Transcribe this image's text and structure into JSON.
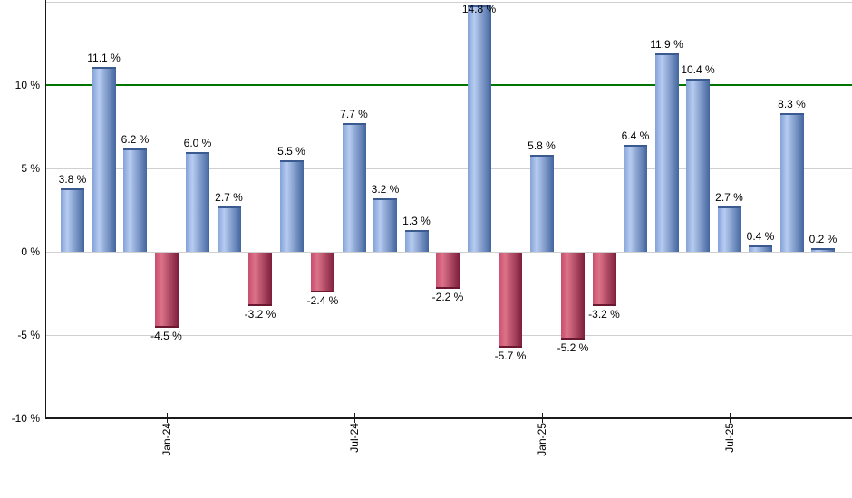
{
  "chart_data": {
    "type": "bar",
    "title": "",
    "unit": "%",
    "bars": [
      {
        "value": 3.8,
        "label": "3.8 %"
      },
      {
        "value": 11.1,
        "label": "11.1 %"
      },
      {
        "value": 6.2,
        "label": "6.2 %"
      },
      {
        "value": -4.5,
        "label": "-4.5 %"
      },
      {
        "value": 6.0,
        "label": "6.0 %"
      },
      {
        "value": 2.7,
        "label": "2.7 %"
      },
      {
        "value": -3.2,
        "label": "-3.2 %"
      },
      {
        "value": 5.5,
        "label": "5.5 %"
      },
      {
        "value": -2.4,
        "label": "-2.4 %"
      },
      {
        "value": 7.7,
        "label": "7.7 %"
      },
      {
        "value": 3.2,
        "label": "3.2 %"
      },
      {
        "value": 1.3,
        "label": "1.3 %"
      },
      {
        "value": -2.2,
        "label": "-2.2 %"
      },
      {
        "value": 14.8,
        "label": "14.8 %"
      },
      {
        "value": -5.7,
        "label": "-5.7 %"
      },
      {
        "value": 5.8,
        "label": "5.8 %"
      },
      {
        "value": -5.2,
        "label": "-5.2 %"
      },
      {
        "value": -3.2,
        "label": "-3.2 %"
      },
      {
        "value": 6.4,
        "label": "6.4 %"
      },
      {
        "value": 11.9,
        "label": "11.9 %"
      },
      {
        "value": 10.4,
        "label": "10.4 %"
      },
      {
        "value": 2.7,
        "label": "2.7 %"
      },
      {
        "value": 0.4,
        "label": "0.4 %"
      },
      {
        "value": 8.3,
        "label": "8.3 %"
      },
      {
        "value": 0.2,
        "label": "0.2 %"
      }
    ],
    "x_ticks": [
      {
        "bar_index": 3,
        "label": "Jan-24"
      },
      {
        "bar_index": 9,
        "label": "Jul-24"
      },
      {
        "bar_index": 15,
        "label": "Jan-25"
      },
      {
        "bar_index": 21,
        "label": "Jul-25"
      }
    ],
    "y_ticks": [
      {
        "value": 10,
        "label": "10 %"
      },
      {
        "value": 5,
        "label": "5 %"
      },
      {
        "value": 0,
        "label": "0 %"
      },
      {
        "value": -5,
        "label": "-5 %"
      },
      {
        "value": -10,
        "label": "-10 %"
      }
    ],
    "ylim": [
      -10,
      15.1
    ],
    "gridline_values": [
      15,
      5,
      0,
      -5
    ],
    "reference_line": {
      "value": 10
    },
    "grid": true,
    "legend": "none",
    "colors": {
      "positive_bar_left": "#84a2d8",
      "positive_bar_highlight": "#b7ccf0",
      "positive_bar_dark": "#43659f",
      "positive_bar_cap": "#3a5a90",
      "negative_bar_left": "#c94e6e",
      "negative_bar_highlight": "#dc7289",
      "negative_bar_dark": "#7d1e3c",
      "negative_bar_cap": "#6a1830",
      "reference_line": "#007300",
      "gridline": "#d0d0d0",
      "axis": "#1a1a1a",
      "label_text": "#000000"
    }
  }
}
